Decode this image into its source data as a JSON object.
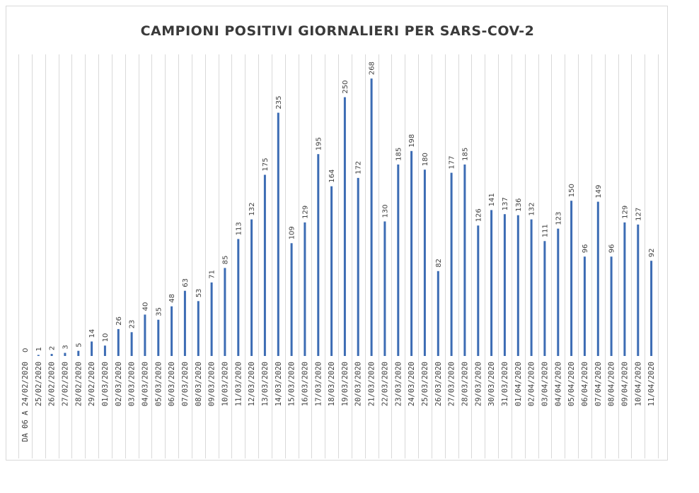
{
  "chart_data": {
    "type": "bar",
    "title": "CAMPIONI POSITIVI GIORNALIERI PER SARS-COV-2",
    "xlabel": "",
    "ylabel": "",
    "ylim": [
      0,
      290
    ],
    "grid": "vertical",
    "legend": "none",
    "bar_color": "#3c6cb4",
    "categories": [
      "DA 06 A 24/02/2020",
      "25/02/2020",
      "26/02/2020",
      "27/02/2020",
      "28/02/2020",
      "29/02/2020",
      "01/03/2020",
      "02/03/2020",
      "03/03/2020",
      "04/03/2020",
      "05/03/2020",
      "06/03/2020",
      "07/03/2020",
      "08/03/2020",
      "09/03/2020",
      "10/03/2020",
      "11/03/2020",
      "12/03/2020",
      "13/03/2020",
      "14/03/2020",
      "15/03/2020",
      "16/03/2020",
      "17/03/2020",
      "18/03/2020",
      "19/03/2020",
      "20/03/2020",
      "21/03/2020",
      "22/03/2020",
      "23/03/2020",
      "24/03/2020",
      "25/03/2020",
      "26/03/2020",
      "27/03/2020",
      "28/03/2020",
      "29/03/2020",
      "30/03/2020",
      "31/03/2020",
      "01/04/2020",
      "02/04/2020",
      "03/04/2020",
      "04/04/2020",
      "05/04/2020",
      "06/04/2020",
      "07/04/2020",
      "08/04/2020",
      "09/04/2020",
      "10/04/2020",
      "11/04/2020"
    ],
    "values": [
      0,
      1,
      2,
      3,
      5,
      14,
      10,
      26,
      23,
      40,
      35,
      48,
      63,
      53,
      71,
      85,
      113,
      132,
      175,
      235,
      109,
      129,
      195,
      164,
      250,
      172,
      268,
      130,
      185,
      198,
      180,
      82,
      177,
      185,
      126,
      141,
      137,
      136,
      132,
      111,
      123,
      150,
      96,
      149,
      96,
      129,
      127,
      92
    ]
  }
}
